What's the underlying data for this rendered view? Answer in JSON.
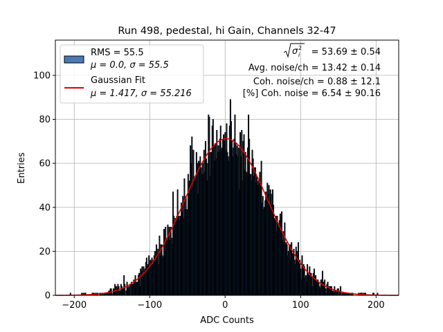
{
  "chart_data": {
    "type": "bar",
    "title": "Run 498, pedestal, hi Gain, Channels 32-47",
    "xlabel": "ADC Counts",
    "ylabel": "Entries",
    "xlim": [
      -225,
      230
    ],
    "ylim": [
      0,
      116
    ],
    "x_ticks": [
      -200,
      -100,
      0,
      100,
      200
    ],
    "y_ticks": [
      0,
      20,
      40,
      60,
      80,
      100
    ],
    "grid": true,
    "legend_position": "top-left",
    "histogram": {
      "name": "RMS = 55.5",
      "stats_label": "μ = 0.0, σ = 55.5",
      "bin_width": 1.0,
      "mean": 0.0,
      "sigma": 55.5,
      "peak": 71.5,
      "x_min": -205,
      "x_max": 208,
      "color": "#1f4f8a",
      "edge_color": "#000000"
    },
    "fit": {
      "name": "Gaussian Fit",
      "stats_label": "μ = 1.417, σ = 55.216",
      "mu": 1.417,
      "sigma": 55.216,
      "amplitude": 71.2,
      "color": "#e00000"
    },
    "annotations": {
      "sigma_value": "= 53.69 ± 0.54",
      "avg_noise": "Avg. noise/ch = 13.42 ± 0.14",
      "coh_noise": "Coh. noise/ch = 0.88 ± 12.1",
      "coh_pct": "[%] Coh. noise = 6.54 ± 90.16"
    }
  }
}
